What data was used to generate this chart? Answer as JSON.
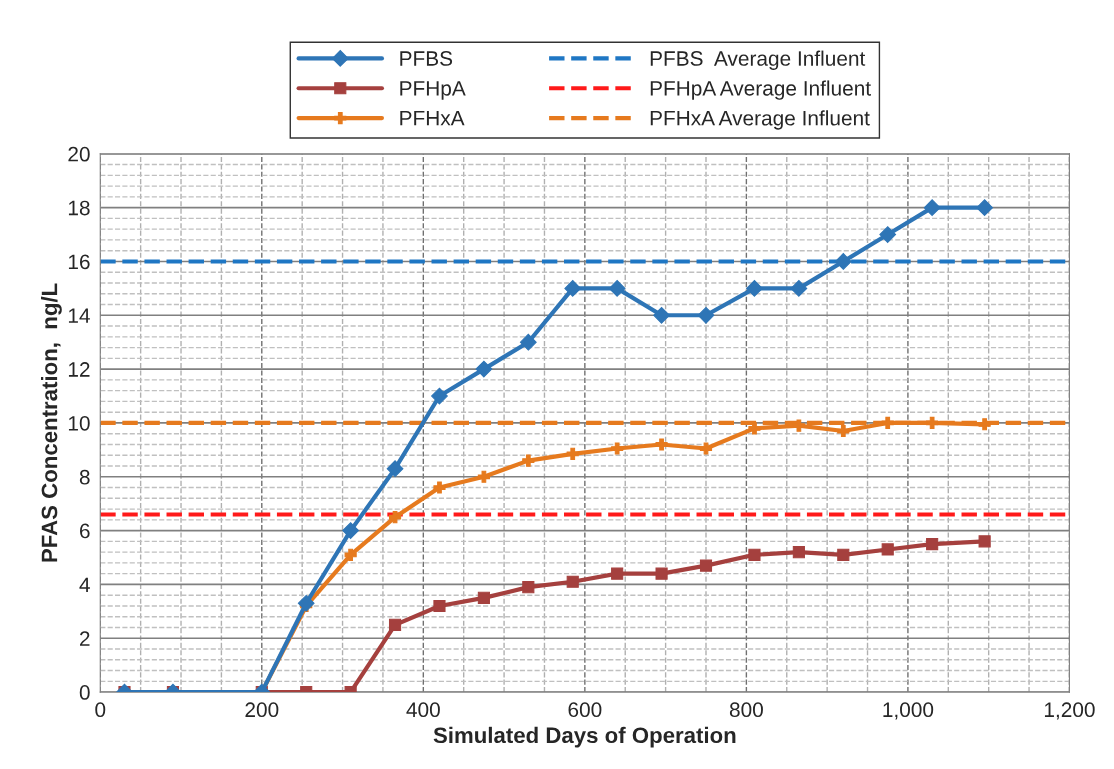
{
  "chart_data": {
    "type": "line",
    "xlabel": "Simulated Days of Operation",
    "ylabel": "PFAS Concentration,  ng/L",
    "series": [
      {
        "name": "PFBS",
        "color": "#2e75b6",
        "marker": "diamond",
        "x": [
          30,
          90,
          200,
          255,
          310,
          365,
          420,
          475,
          530,
          585,
          640,
          695,
          750,
          810,
          865,
          920,
          975,
          1030,
          1095
        ],
        "values": [
          0,
          0,
          0,
          3.3,
          6,
          8.3,
          11,
          12,
          13,
          15,
          15,
          14,
          14,
          15,
          15,
          16,
          17,
          18,
          18
        ]
      },
      {
        "name": "PFHpA",
        "color": "#a5403e",
        "marker": "square",
        "x": [
          30,
          90,
          200,
          255,
          310,
          365,
          420,
          475,
          530,
          585,
          640,
          695,
          750,
          810,
          865,
          920,
          975,
          1030,
          1095
        ],
        "values": [
          0,
          0,
          0,
          0,
          0,
          2.5,
          3.2,
          3.5,
          3.9,
          4.1,
          4.4,
          4.4,
          4.7,
          5.1,
          5.2,
          5.1,
          5.3,
          5.5,
          5.6
        ]
      },
      {
        "name": "PFHxA",
        "color": "#e67a1e",
        "marker": "cross",
        "x": [
          30,
          90,
          200,
          255,
          310,
          365,
          420,
          475,
          530,
          585,
          640,
          695,
          750,
          810,
          865,
          920,
          975,
          1030,
          1095
        ],
        "values": [
          0,
          0,
          0,
          3.2,
          5.1,
          6.5,
          7.6,
          8.0,
          8.6,
          8.85,
          9.05,
          9.2,
          9.05,
          9.8,
          9.9,
          9.7,
          10,
          10,
          9.95
        ]
      }
    ],
    "ref_lines": [
      {
        "axis": "y",
        "value": 16,
        "label": "PFBS  Average Influent",
        "color": "#1f77c4",
        "line_style": "dashed"
      },
      {
        "axis": "y",
        "value": 6.6,
        "label": "PFHpA Average Influent",
        "color": "#ff1a1a",
        "line_style": "dashed"
      },
      {
        "axis": "y",
        "value": 10,
        "label": "PFHxA Average Influent",
        "color": "#e67a1e",
        "line_style": "dashed"
      }
    ],
    "xlim": [
      0,
      1200
    ],
    "xticks": [
      0,
      200,
      400,
      600,
      800,
      {
        "value": 1000,
        "label": "1,000"
      },
      {
        "value": 1200,
        "label": "1,200"
      }
    ],
    "ylim": [
      0,
      20
    ],
    "yticks": [
      0,
      2,
      4,
      6,
      8,
      10,
      12,
      14,
      16,
      18,
      20
    ],
    "grid": true,
    "legend": "top",
    "line_style": "solid"
  }
}
